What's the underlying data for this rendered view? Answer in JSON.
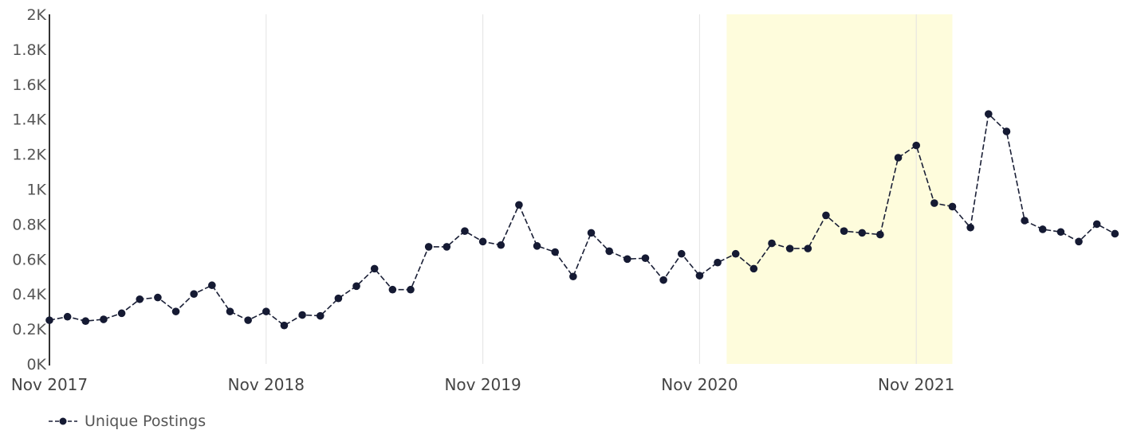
{
  "chart_data": {
    "type": "line",
    "title": "",
    "xlabel": "",
    "ylabel": "",
    "ylim": [
      0,
      2000
    ],
    "y_ticks": [
      "0K",
      "0.2K",
      "0.4K",
      "0.6K",
      "0.8K",
      "1K",
      "1.2K",
      "1.4K",
      "1.6K",
      "1.8K",
      "2K"
    ],
    "x_ticks": [
      "Nov 2017",
      "Nov 2018",
      "Nov 2019",
      "Nov 2020",
      "Nov 2021"
    ],
    "x_range": [
      "2017-11",
      "2022-10"
    ],
    "highlight": {
      "from": "2021-01",
      "to": "2021-12",
      "color": "#fefcdc"
    },
    "grid": "vertical",
    "legend_position": "bottom-left",
    "series": [
      {
        "name": "Unique Postings",
        "color": "#151a33",
        "style": "dashed-with-markers",
        "x": [
          "2017-11",
          "2017-12",
          "2018-01",
          "2018-02",
          "2018-03",
          "2018-04",
          "2018-05",
          "2018-06",
          "2018-07",
          "2018-08",
          "2018-09",
          "2018-10",
          "2018-11",
          "2018-12",
          "2019-01",
          "2019-02",
          "2019-03",
          "2019-04",
          "2019-05",
          "2019-06",
          "2019-07",
          "2019-08",
          "2019-09",
          "2019-10",
          "2019-11",
          "2019-12",
          "2020-01",
          "2020-02",
          "2020-03",
          "2020-04",
          "2020-05",
          "2020-06",
          "2020-07",
          "2020-08",
          "2020-09",
          "2020-10",
          "2020-11",
          "2020-12",
          "2021-01",
          "2021-02",
          "2021-03",
          "2021-04",
          "2021-05",
          "2021-06",
          "2021-07",
          "2021-08",
          "2021-09",
          "2021-10",
          "2021-11",
          "2021-12",
          "2022-01",
          "2022-02",
          "2022-03",
          "2022-04",
          "2022-05",
          "2022-06",
          "2022-07",
          "2022-08",
          "2022-09",
          "2022-10"
        ],
        "values": [
          250,
          270,
          245,
          255,
          290,
          370,
          380,
          300,
          400,
          450,
          300,
          250,
          300,
          220,
          280,
          275,
          375,
          445,
          545,
          425,
          425,
          670,
          670,
          760,
          700,
          680,
          910,
          675,
          640,
          500,
          750,
          645,
          600,
          605,
          480,
          630,
          505,
          580,
          630,
          545,
          690,
          660,
          660,
          850,
          760,
          750,
          740,
          1180,
          1250,
          920,
          900,
          780,
          1430,
          1330,
          820,
          770,
          755,
          700,
          800,
          745
        ]
      }
    ]
  }
}
